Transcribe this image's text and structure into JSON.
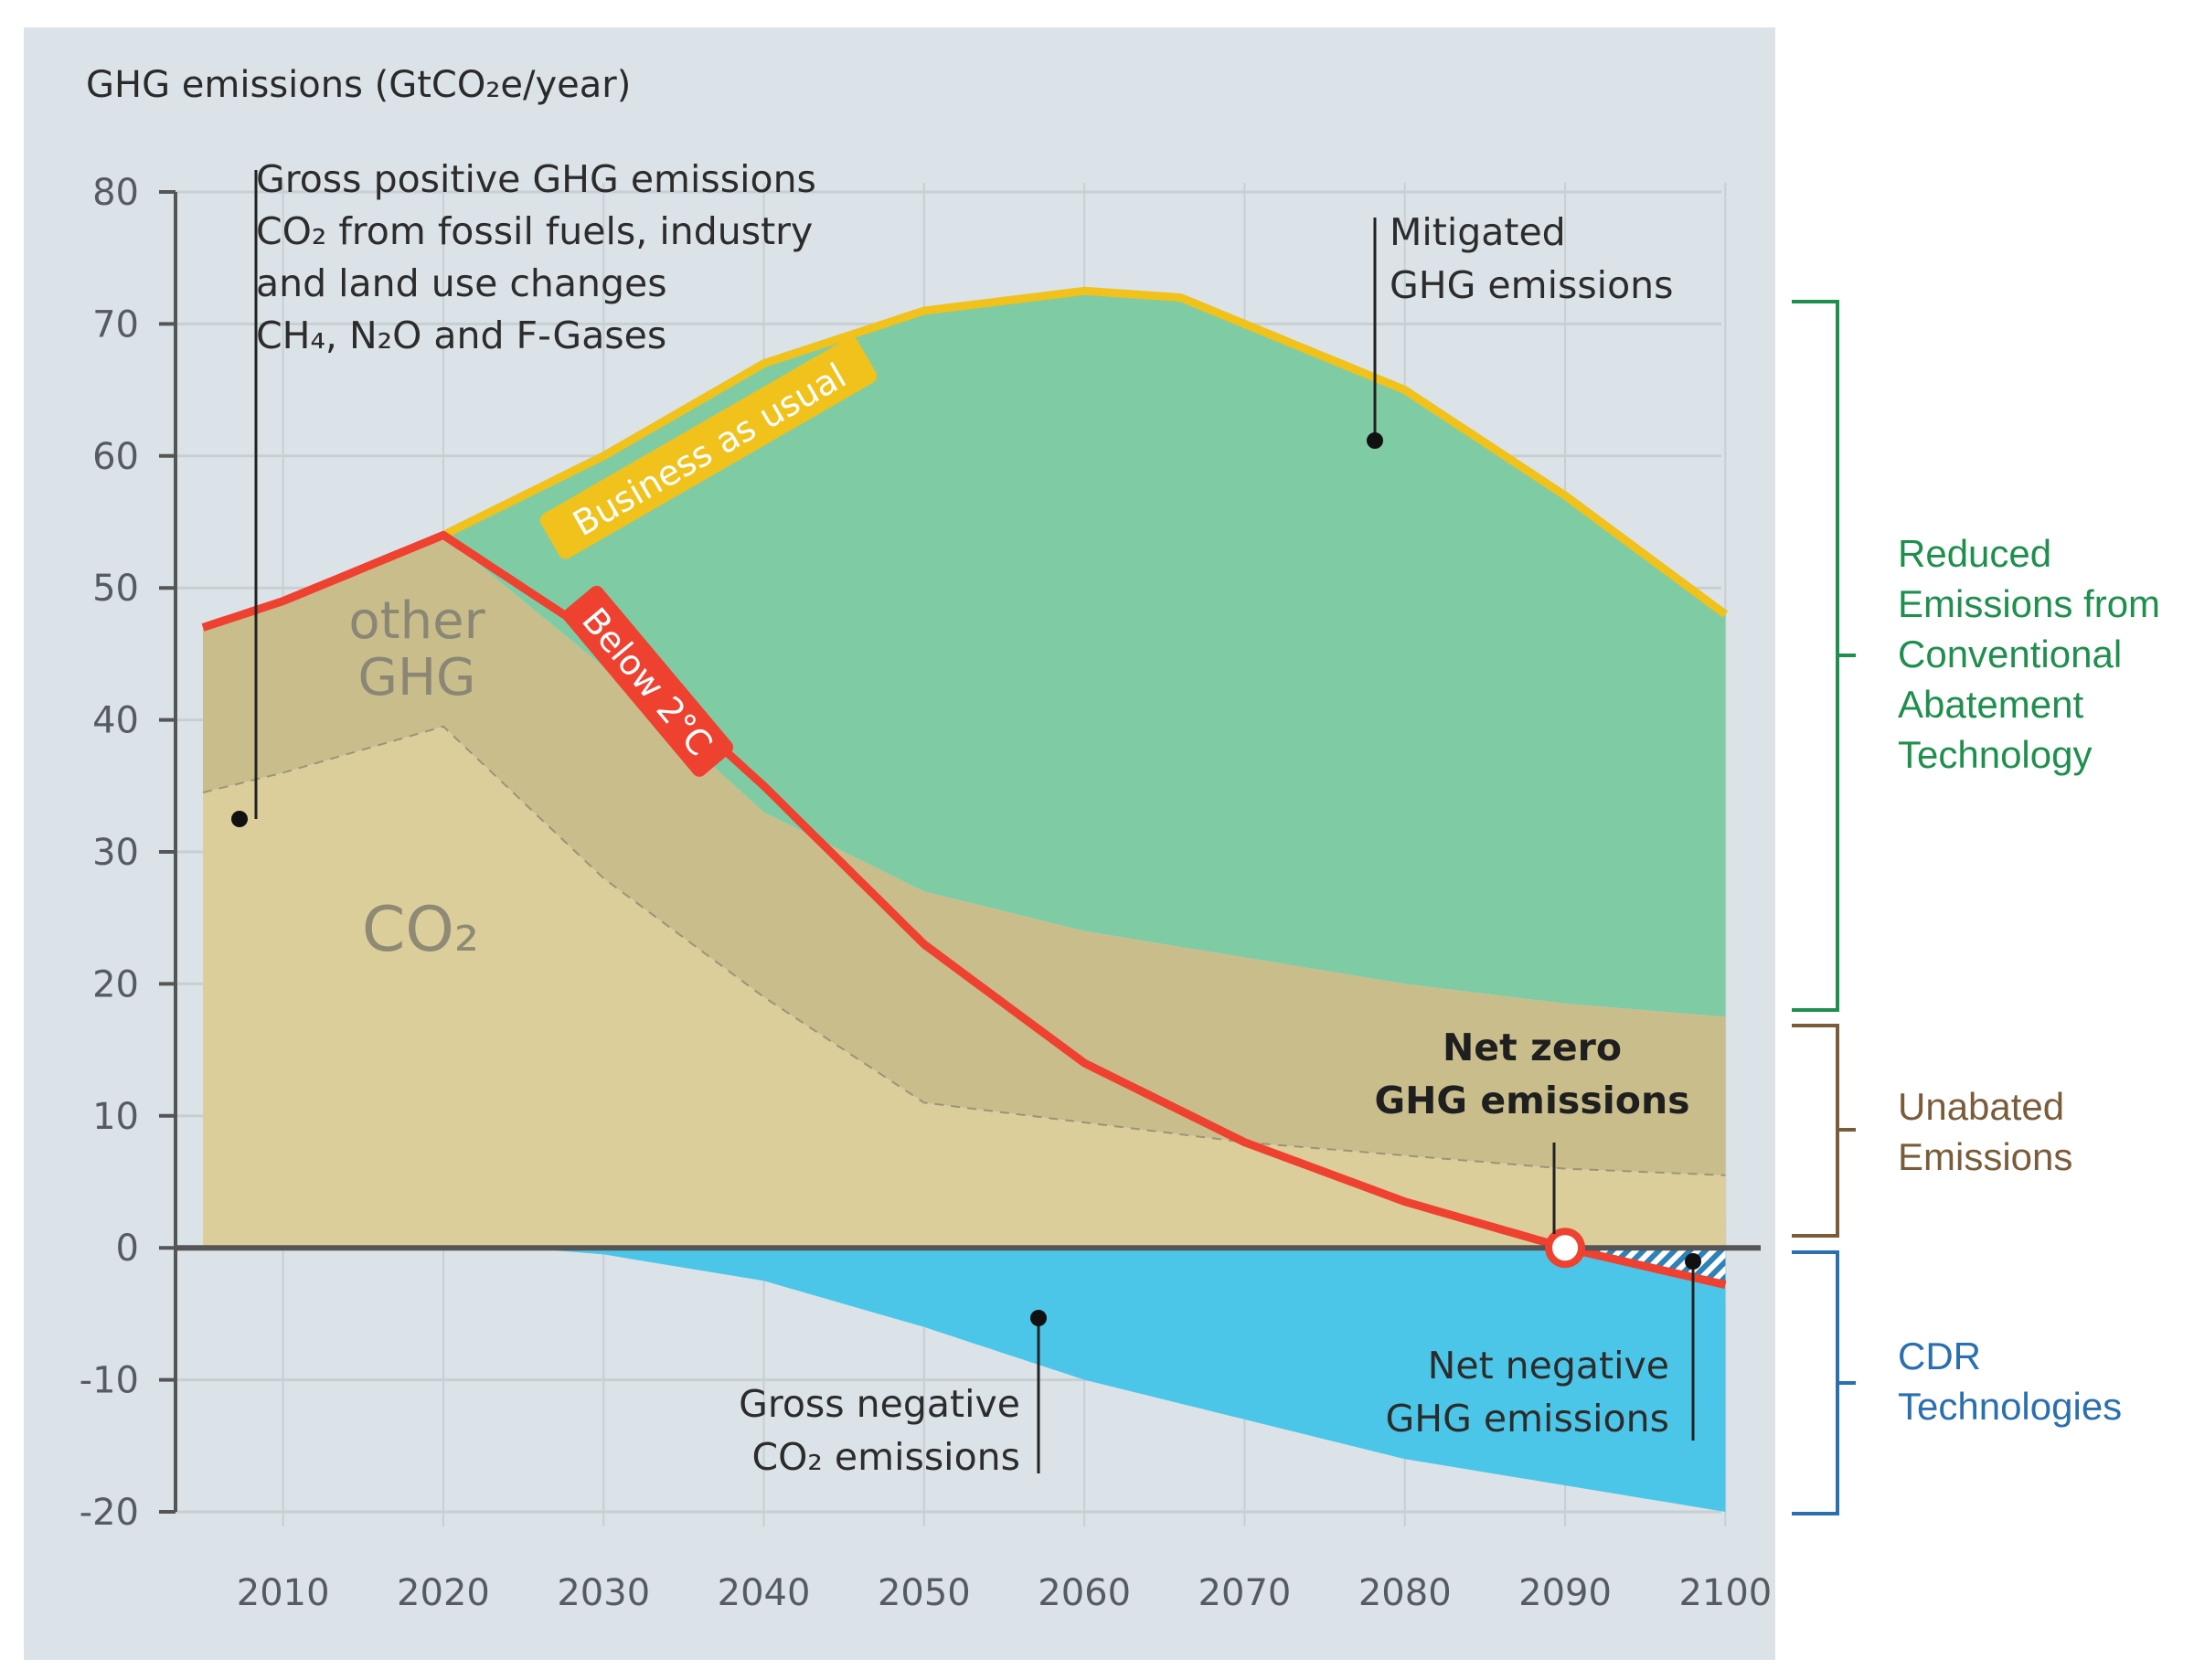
{
  "chart_data": {
    "type": "area",
    "ylabel": "GHG emissions (GtCO₂e/year)",
    "ylim": [
      -20,
      80
    ],
    "xlim": [
      2005,
      2100
    ],
    "y_ticks": [
      80,
      70,
      60,
      50,
      40,
      30,
      20,
      10,
      0,
      -10,
      -20
    ],
    "y_tick_labels": [
      "80",
      "70",
      "60",
      "50",
      "40",
      "30",
      "20",
      "10",
      "0",
      "-10",
      "-20"
    ],
    "x_ticks": [
      2010,
      2020,
      2030,
      2040,
      2050,
      2060,
      2070,
      2080,
      2090,
      2100
    ],
    "x_tick_labels": [
      "2010",
      "2020",
      "2030",
      "2040",
      "2050",
      "2060",
      "2070",
      "2080",
      "2090",
      "2100"
    ],
    "grid": true,
    "series": [
      {
        "name": "Business as usual",
        "x": [
          2005,
          2010,
          2020,
          2030,
          2040,
          2050,
          2060,
          2066,
          2070,
          2080,
          2090,
          2100
        ],
        "values": [
          47,
          49,
          54,
          60,
          67,
          71,
          72.5,
          72,
          70,
          65,
          57,
          48
        ]
      },
      {
        "name": "Below 2°C",
        "x": [
          2005,
          2010,
          2020,
          2030,
          2040,
          2050,
          2060,
          2070,
          2080,
          2090,
          2100
        ],
        "values": [
          47,
          49,
          54,
          46,
          35,
          23,
          14,
          8,
          3.5,
          0,
          -2.8
        ]
      },
      {
        "name": "Gross positive GHG emissions",
        "x": [
          2005,
          2010,
          2020,
          2030,
          2040,
          2050,
          2060,
          2070,
          2080,
          2090,
          2100
        ],
        "values": [
          47,
          49,
          54,
          44,
          33,
          27,
          24,
          22,
          20,
          18.5,
          17.5
        ]
      },
      {
        "name": "CO₂ (from fossil fuels, industry and land use changes)",
        "x": [
          2005,
          2010,
          2020,
          2030,
          2040,
          2050,
          2060,
          2070,
          2080,
          2090,
          2100
        ],
        "values": [
          34.5,
          36,
          39.5,
          28,
          19,
          11,
          9.5,
          8,
          7,
          6,
          5.5
        ]
      },
      {
        "name": "Gross negative CO₂ emissions",
        "x": [
          2005,
          2020,
          2025,
          2030,
          2040,
          2050,
          2060,
          2070,
          2080,
          2090,
          2100
        ],
        "values": [
          0,
          0,
          0,
          -0.5,
          -2.5,
          -6,
          -10,
          -13,
          -16,
          -18,
          -20
        ]
      }
    ],
    "colors": {
      "panel_bg": "#dbe3e8",
      "bau": "#f0c21b",
      "below2c": "#ef4130",
      "mitigated": "#7fcca4",
      "other_ghg": "#c9bd8c",
      "co2": "#dcce9a",
      "gross_negative": "#4cc6e8",
      "net_negative_hatch": "#2f82b8",
      "reduced_bracket": "#1f8f4e",
      "unabated_bracket": "#7a5c3a",
      "cdr_bracket": "#2a6fb0",
      "zero_axis": "#555555",
      "grid": "#c8cfd3"
    },
    "area_labels": {
      "other_ghg_line1": "other",
      "other_ghg_line2": "GHG",
      "co2": "CO₂",
      "bau": "Business as usual",
      "below2c": "Below 2°C"
    },
    "annotations": {
      "gross_positive_1": "Gross positive GHG emissions",
      "gross_positive_2": "CO₂ from fossil fuels, industry",
      "gross_positive_3": "and land use changes",
      "gross_positive_4": "CH₄, N₂O and F-Gases",
      "mitigated_1": "Mitigated",
      "mitigated_2": "GHG emissions",
      "net_zero_1": "Net zero",
      "net_zero_2": "GHG emissions",
      "gross_negative_1": "Gross negative",
      "gross_negative_2": "CO₂ emissions",
      "net_negative_1": "Net negative",
      "net_negative_2": "GHG emissions"
    },
    "brackets": {
      "reduced": [
        "Reduced",
        "Emissions from",
        "Conventional",
        "Abatement",
        "Technology"
      ],
      "unabated": [
        "Unabated",
        "Emissions"
      ],
      "cdr": [
        "CDR",
        "Technologies"
      ]
    }
  }
}
